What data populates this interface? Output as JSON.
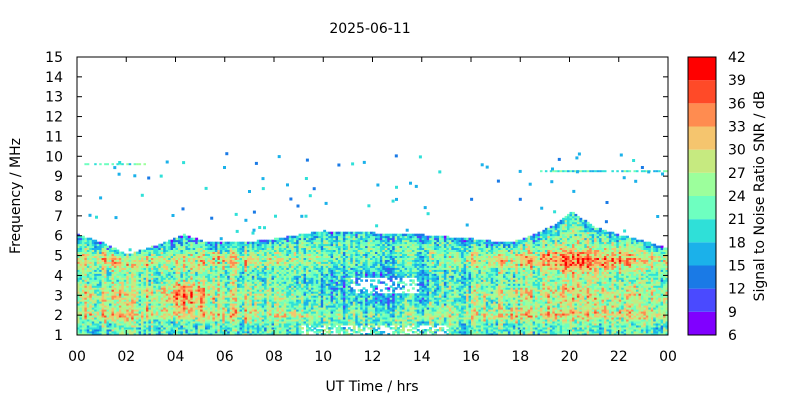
{
  "chart_data": {
    "type": "heatmap",
    "title": "2025-06-11",
    "xlabel": "UT Time / hrs",
    "ylabel": "Frequency / MHz",
    "colorbar_label": "Signal to Noise Ratio SNR / dB",
    "xlim": [
      0,
      24
    ],
    "ylim": [
      1,
      15
    ],
    "x_ticks": [
      "00",
      "02",
      "04",
      "06",
      "08",
      "10",
      "12",
      "14",
      "16",
      "18",
      "20",
      "22",
      "00"
    ],
    "y_ticks": [
      "1",
      "2",
      "3",
      "4",
      "5",
      "6",
      "7",
      "8",
      "9",
      "10",
      "11",
      "12",
      "13",
      "14",
      "15"
    ],
    "colorbar": {
      "min": 6,
      "max": 42,
      "step": 3,
      "tick_labels": [
        "6",
        "9",
        "12",
        "15",
        "18",
        "21",
        "24",
        "27",
        "30",
        "33",
        "36",
        "39",
        "42"
      ],
      "colors": [
        "#8000ff",
        "#4a4aff",
        "#1a7ae6",
        "#1bb1ea",
        "#2fe0d8",
        "#6effc0",
        "#9cff9c",
        "#c6ea80",
        "#f5c56e",
        "#ff8c50",
        "#ff4a28",
        "#ff0000"
      ]
    },
    "upper_envelope_mhz": [
      {
        "t": 0.0,
        "f": 6.0
      },
      {
        "t": 1.0,
        "f": 5.6
      },
      {
        "t": 2.0,
        "f": 5.0
      },
      {
        "t": 3.0,
        "f": 5.4
      },
      {
        "t": 4.3,
        "f": 6.0
      },
      {
        "t": 5.3,
        "f": 5.6
      },
      {
        "t": 6.5,
        "f": 5.6
      },
      {
        "t": 8.0,
        "f": 5.8
      },
      {
        "t": 10.0,
        "f": 6.2
      },
      {
        "t": 12.0,
        "f": 6.1
      },
      {
        "t": 14.0,
        "f": 6.0
      },
      {
        "t": 16.0,
        "f": 5.8
      },
      {
        "t": 17.5,
        "f": 5.6
      },
      {
        "t": 18.5,
        "f": 6.0
      },
      {
        "t": 19.5,
        "f": 6.6
      },
      {
        "t": 20.0,
        "f": 7.2
      },
      {
        "t": 21.0,
        "f": 6.4
      },
      {
        "t": 22.0,
        "f": 6.0
      },
      {
        "t": 23.0,
        "f": 5.7
      },
      {
        "t": 24.0,
        "f": 5.3
      }
    ],
    "trace_bands": [
      {
        "t_start": 0.3,
        "t_end": 2.8,
        "f": 9.55,
        "snr": 21
      },
      {
        "t_start": 18.8,
        "t_end": 24.0,
        "f": 9.2,
        "snr": 21
      }
    ]
  }
}
